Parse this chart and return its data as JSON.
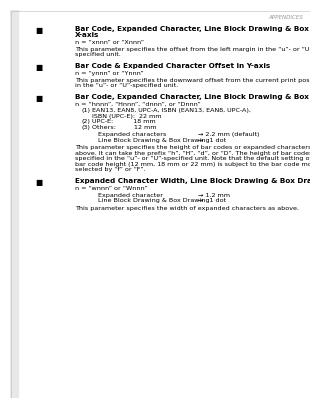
{
  "header": "APPENDICES",
  "bg_color": "#ffffff",
  "text_color": "#000000",
  "gray_color": "#999999",
  "border_color": "#cccccc",
  "sections": [
    {
      "title": "Bar Code, Expanded Character, Line Block Drawing & Box Drawing Offset in\nX-axis",
      "param": "n = “xnnn” or “Xnnn”",
      "desc": "This parameter specifies the offset from the left margin in the “u”- or “U”-\nspecified unit."
    },
    {
      "title": "Bar Code & Expanded Character Offset in Y-axis",
      "param": "n = “ynnn” or “Ynnn”",
      "desc": "This parameter specifies the downward offset from the current print position\nin the “u”- or “U”-specified unit."
    },
    {
      "title": "Bar Code, Expanded Character, Line Block Drawing & Box Drawing Height",
      "param": "n = “hnnn”, “Hnnn”, “dnnn”, or “Dnnn”",
      "list": [
        [
          "(1)",
          "EAN13, EAN8, UPC-A, ISBN (EAN13, EAN8, UPC-A),\nISBN (UPC-E):  22 mm"
        ],
        [
          "(2)",
          "UPC-E:          18 mm"
        ],
        [
          "(3)",
          "Others:         12 mm"
        ]
      ],
      "table": [
        [
          "Expanded characters",
          "→ 2.2 mm (default)"
        ],
        [
          "Line Block Drawing & Box Drawing",
          "→   1 dot"
        ]
      ],
      "desc": "This parameter specifies the height of bar codes or expanded characters as\nabove. It can take the prefix “h”, “H”, “d”, or “D”. The height of bar codes is\nspecified in the “u”- or “U”-specified unit. Note that the default setting of the\nbar code height (12 mm, 18 mm or 22 mm) is subject to the bar code mode\nselected by “f” or “F”."
    },
    {
      "title": "Expanded Character Width, Line Block Drawing & Box Drawing",
      "param": "n = “wnnn” or “Wnnn”",
      "table": [
        [
          "Expanded character",
          "→ 1.2 mm"
        ],
        [
          "Line Block Drawing & Box Drawing",
          "→   1 dot"
        ]
      ],
      "desc": "This parameter specifies the width of expanded characters as above."
    }
  ]
}
